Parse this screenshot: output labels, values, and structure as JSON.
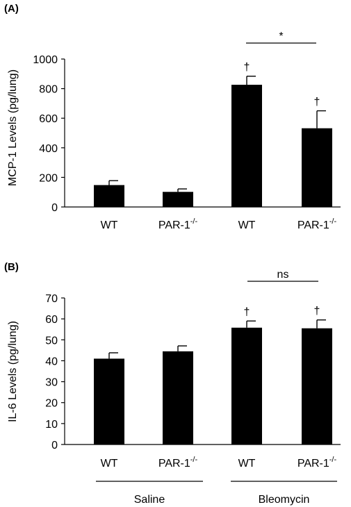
{
  "chart_data": [
    {
      "panel_label": "(A)",
      "type": "bar",
      "ylabel": "MCP-1 Levels (pg/lung)",
      "ylim": [
        0,
        1000
      ],
      "yticks": [
        0,
        200,
        400,
        600,
        800,
        1000
      ],
      "categories": [
        {
          "base": "WT",
          "sup": ""
        },
        {
          "base": "PAR-1",
          "sup": "-/-"
        },
        {
          "base": "WT",
          "sup": ""
        },
        {
          "base": "PAR-1",
          "sup": "-/-"
        }
      ],
      "values": [
        148,
        102,
        826,
        532
      ],
      "errors": [
        30,
        20,
        58,
        118
      ],
      "markers": [
        "",
        "",
        "†",
        "†"
      ],
      "comparison": {
        "from": 2,
        "to": 3,
        "label": "*"
      }
    },
    {
      "panel_label": "(B)",
      "type": "bar",
      "ylabel": "IL-6 Levels (pg/lung)",
      "ylim": [
        0,
        70
      ],
      "yticks": [
        0,
        10,
        20,
        30,
        40,
        50,
        60,
        70
      ],
      "categories": [
        {
          "base": "WT",
          "sup": ""
        },
        {
          "base": "PAR-1",
          "sup": "-/-"
        },
        {
          "base": "WT",
          "sup": ""
        },
        {
          "base": "PAR-1",
          "sup": "-/-"
        }
      ],
      "values": [
        41,
        44.5,
        55.8,
        55.5
      ],
      "errors": [
        2.8,
        2.6,
        3.2,
        4.0
      ],
      "markers": [
        "",
        "",
        "†",
        "†"
      ],
      "comparison": {
        "from": 2,
        "to": 3,
        "label": "ns"
      },
      "groups": [
        {
          "label": "Saline",
          "from": 0,
          "to": 1
        },
        {
          "label": "Bleomycin",
          "from": 2,
          "to": 3
        }
      ]
    }
  ]
}
